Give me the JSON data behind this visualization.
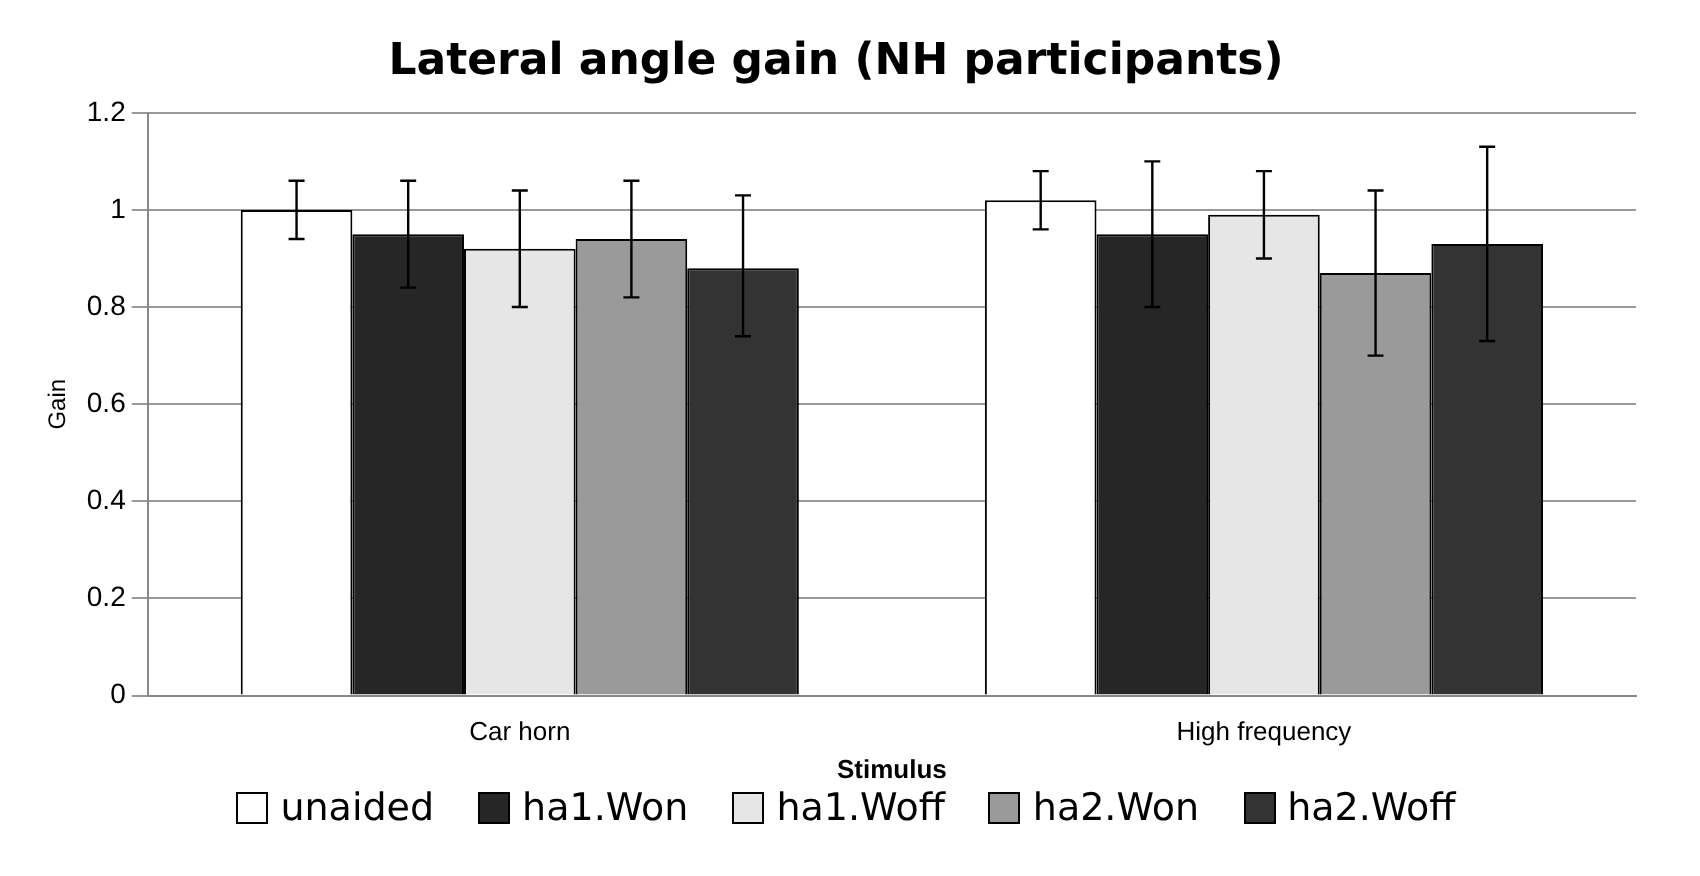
{
  "chart_data": {
    "type": "bar",
    "title": "Lateral angle gain (NH participants)",
    "xlabel": "Stimulus",
    "ylabel": "Gain",
    "categories": [
      "Car horn",
      "High frequency"
    ],
    "series": [
      {
        "name": "unaided",
        "color": "#ffffff",
        "values": [
          1.0,
          1.02
        ],
        "errors": [
          [
            0.94,
            1.06
          ],
          [
            0.96,
            1.08
          ]
        ]
      },
      {
        "name": "ha1.Won",
        "color": "#262626",
        "values": [
          0.95,
          0.95
        ],
        "errors": [
          [
            0.84,
            1.06
          ],
          [
            0.8,
            1.1
          ]
        ]
      },
      {
        "name": "ha1.Woff",
        "color": "#e6e6e6",
        "values": [
          0.92,
          0.99
        ],
        "errors": [
          [
            0.8,
            1.04
          ],
          [
            0.9,
            1.08
          ]
        ]
      },
      {
        "name": "ha2.Won",
        "color": "#9a9a9a",
        "values": [
          0.94,
          0.87
        ],
        "errors": [
          [
            0.82,
            1.06
          ],
          [
            0.7,
            1.04
          ]
        ]
      },
      {
        "name": "ha2.Woff",
        "color": "#333333",
        "values": [
          0.88,
          0.93
        ],
        "errors": [
          [
            0.74,
            1.03
          ],
          [
            0.73,
            1.13
          ]
        ]
      }
    ],
    "ylim": [
      0,
      1.2
    ],
    "yticks": [
      0,
      0.2,
      0.4,
      0.6,
      0.8,
      1,
      1.2
    ],
    "grid": "y",
    "legend": "bottom"
  }
}
